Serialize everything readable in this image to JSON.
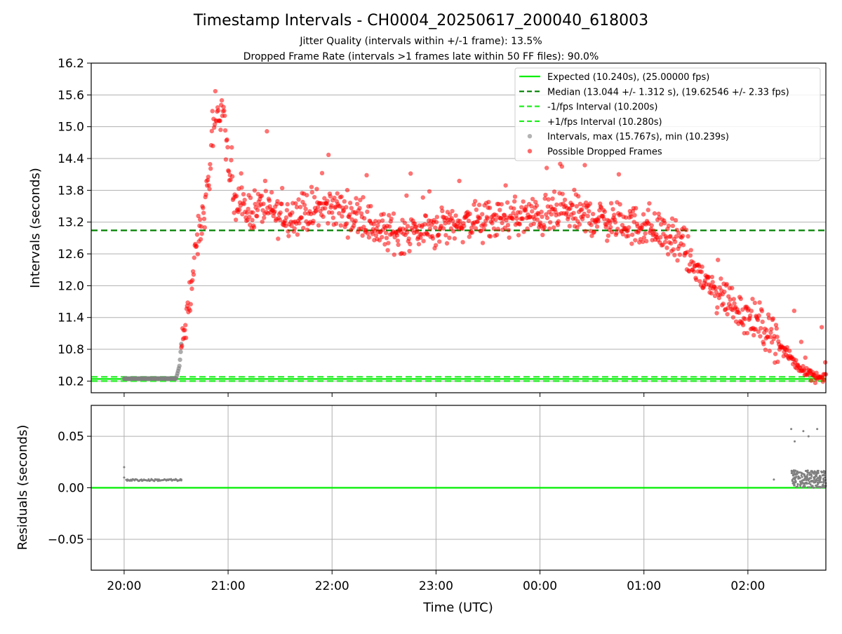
{
  "title": "Timestamp Intervals - CH0004_20250617_200040_618003",
  "subtitle_1": "Jitter Quality (intervals within +/-1 frame): 13.5%",
  "subtitle_2": "Dropped Frame Rate (intervals >1 frames late within 50 FF files): 90.0%",
  "colors": {
    "expected": "#00ee00",
    "median": "#008000",
    "band": "#22ee22",
    "intervals": "#808080",
    "dropped": "#ff0000",
    "grid": "#b0b0b0"
  },
  "chart_data": [
    {
      "type": "scatter",
      "ylabel": "Intervals (seconds)",
      "ylim": [
        9.98,
        16.2
      ],
      "y_ticks": [
        "10.2",
        "10.8",
        "11.4",
        "12.0",
        "12.6",
        "13.2",
        "13.8",
        "14.4",
        "15.0",
        "15.6",
        "16.2"
      ],
      "y_tick_values": [
        10.2,
        10.8,
        11.4,
        12.0,
        12.6,
        13.2,
        13.8,
        14.4,
        15.0,
        15.6,
        16.2
      ],
      "x_range_hours": [
        "19:41",
        "02:45"
      ],
      "grid": true,
      "legend_position": "top-right",
      "legend": [
        {
          "label": "Expected (10.240s), (25.00000 fps)",
          "style": "solid-line",
          "color": "#00ee00"
        },
        {
          "label": "Median (13.044 +/- 1.312 s), (19.62546 +/- 2.33 fps)",
          "style": "dashed-line",
          "color": "#008000"
        },
        {
          "label": "-1/fps Interval (10.200s)",
          "style": "dashed-line",
          "color": "#22ee22"
        },
        {
          "label": "+1/fps Interval (10.280s)",
          "style": "dashed-line",
          "color": "#22ee22"
        },
        {
          "label": "Intervals, max (15.767s), min (10.239s)",
          "style": "marker",
          "color": "#a0a0a0"
        },
        {
          "label": "Possible Dropped Frames",
          "style": "marker",
          "color": "#ff4444"
        }
      ],
      "reference_lines": {
        "expected": 10.24,
        "median": 13.044,
        "minus_fps": 10.2,
        "plus_fps": 10.28
      },
      "series": [
        {
          "name": "Intervals, max (15.767s), min (10.239s)",
          "x": [
            "20:00",
            "20:10",
            "20:20",
            "20:30",
            "20:32",
            "20:33"
          ],
          "y": [
            10.247,
            10.248,
            10.248,
            10.248,
            10.5,
            10.9
          ]
        },
        {
          "name": "Possible Dropped Frames",
          "x": [
            "20:33",
            "20:36",
            "20:39",
            "20:42",
            "20:45",
            "20:48",
            "20:51",
            "20:54",
            "20:57",
            "21:00",
            "21:05",
            "21:10",
            "21:20",
            "21:30",
            "21:45",
            "22:00",
            "22:15",
            "22:30",
            "22:45",
            "23:00",
            "23:15",
            "23:30",
            "23:45",
            "00:00",
            "00:15",
            "00:30",
            "00:45",
            "01:00",
            "01:10",
            "01:20",
            "01:30",
            "01:40",
            "01:50",
            "02:00",
            "02:10",
            "02:20",
            "02:30",
            "02:40",
            "02:45"
          ],
          "y": [
            10.8,
            11.3,
            12.0,
            12.8,
            13.2,
            13.8,
            14.6,
            15.2,
            15.4,
            14.2,
            13.6,
            13.4,
            13.5,
            13.3,
            13.4,
            13.5,
            13.3,
            13.0,
            13.0,
            13.1,
            13.2,
            13.2,
            13.3,
            13.3,
            13.4,
            13.3,
            13.2,
            13.1,
            13.0,
            12.8,
            12.3,
            11.9,
            11.7,
            11.4,
            11.2,
            10.8,
            10.45,
            10.28,
            10.26
          ]
        }
      ]
    },
    {
      "type": "scatter",
      "xlabel": "Time (UTC)",
      "ylabel": "Residuals (seconds)",
      "ylim": [
        -0.08,
        0.08
      ],
      "y_ticks": [
        "−0.05",
        "0.00",
        "0.05"
      ],
      "y_tick_values": [
        -0.05,
        0.0,
        0.05
      ],
      "x_ticks": [
        "20:00",
        "21:00",
        "22:00",
        "23:00",
        "00:00",
        "01:00",
        "02:00"
      ],
      "grid": true,
      "series": [
        {
          "name": "Residuals",
          "x": [
            "20:00",
            "20:00",
            "20:02",
            "20:10",
            "20:20",
            "20:30",
            "20:33",
            "02:15",
            "02:25",
            "02:27",
            "02:30",
            "02:32",
            "02:35",
            "02:38",
            "02:40",
            "02:43"
          ],
          "y": [
            0.02,
            0.01,
            0.008,
            0.008,
            0.008,
            0.008,
            0.008,
            0.008,
            0.057,
            0.045,
            0.015,
            0.055,
            0.05,
            0.01,
            0.057,
            0.012
          ]
        }
      ]
    }
  ]
}
